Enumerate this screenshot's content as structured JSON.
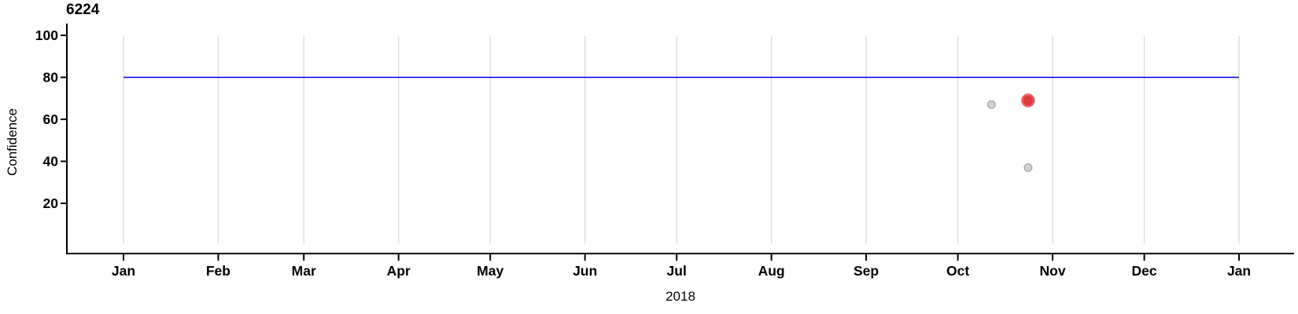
{
  "chart_data": {
    "type": "scatter",
    "title": "6224",
    "xlabel": "2018",
    "ylabel": "Confidence",
    "x_axis": {
      "tick_labels": [
        "Jan",
        "Feb",
        "Mar",
        "Apr",
        "May",
        "Jun",
        "Jul",
        "Aug",
        "Sep",
        "Oct",
        "Nov",
        "Dec",
        "Jan"
      ],
      "year_label": "2018",
      "range": [
        "Jan 1 2018",
        "Jan 1 2019"
      ]
    },
    "y_axis": {
      "tick_values": [
        20,
        40,
        60,
        80,
        100
      ],
      "range_shown": [
        0,
        100
      ]
    },
    "grid": {
      "vertical_month_gridlines": true,
      "horizontal_gridlines": false,
      "gridline_color": "#dcdcdc"
    },
    "axis_color": "#000000",
    "reference_line": {
      "value": 80,
      "color": "#0000dd",
      "start_month": "Jan",
      "start_day": 1,
      "end_days_after_start": 365
    },
    "points": [
      {
        "month": "Oct",
        "day": 12,
        "value": 67,
        "series": "normal",
        "fill": "#d3d3d3",
        "border": "#aaaaaa",
        "size": "small"
      },
      {
        "month": "Oct",
        "day": 24,
        "value": 69,
        "series": "highlighted",
        "fill": "#e03940",
        "border": "#ec6165",
        "size": "large"
      },
      {
        "month": "Oct",
        "day": 24,
        "value": 37,
        "series": "normal",
        "fill": "#d3d3d3",
        "border": "#aaaaaa",
        "size": "small"
      }
    ]
  }
}
